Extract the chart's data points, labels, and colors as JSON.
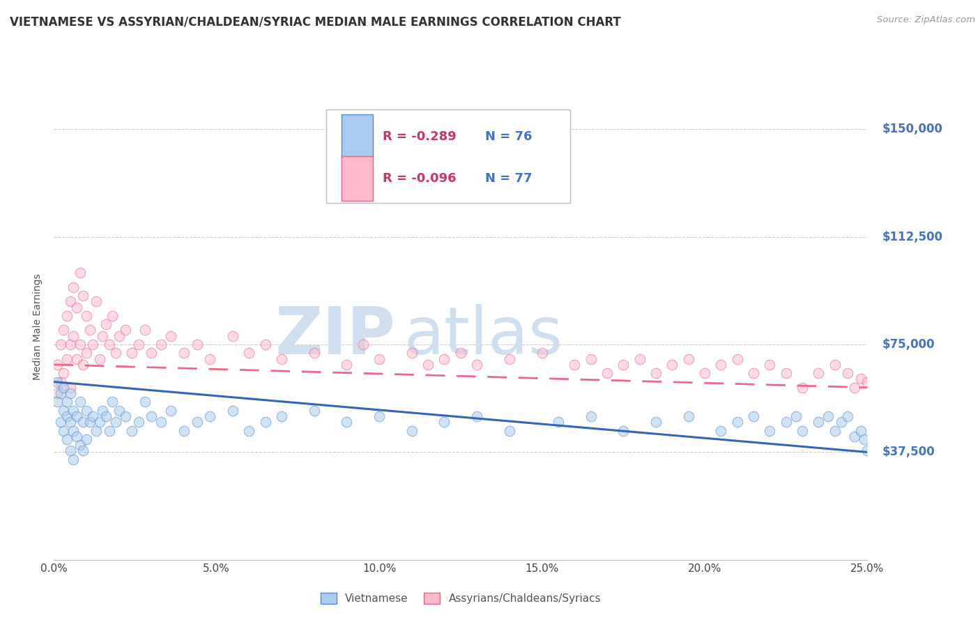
{
  "title": "VIETNAMESE VS ASSYRIAN/CHALDEAN/SYRIAC MEDIAN MALE EARNINGS CORRELATION CHART",
  "source_text": "Source: ZipAtlas.com",
  "ylabel": "Median Male Earnings",
  "xlim": [
    0.0,
    0.25
  ],
  "ylim": [
    0,
    162500
  ],
  "yticks": [
    0,
    37500,
    75000,
    112500,
    150000
  ],
  "ytick_labels": [
    "",
    "$37,500",
    "$75,000",
    "$112,500",
    "$150,000"
  ],
  "xticks": [
    0.0,
    0.05,
    0.1,
    0.15,
    0.2,
    0.25
  ],
  "xtick_labels": [
    "0.0%",
    "5.0%",
    "10.0%",
    "15.0%",
    "20.0%",
    "25.0%"
  ],
  "grid_color": "#cccccc",
  "background_color": "#ffffff",
  "title_fontsize": 12,
  "axis_label_color": "#555555",
  "ytick_color": "#4472c4",
  "xtick_color": "#444444",
  "watermark_zip": "ZIP",
  "watermark_atlas": "atlas",
  "watermark_color": "#d0dff0",
  "legend_r1": "R = -0.289",
  "legend_n1": "N = 76",
  "legend_r2": "R = -0.096",
  "legend_n2": "N = 77",
  "legend_r_color": "#cc3366",
  "legend_n_color": "#4472c4",
  "viet_color": "#aaccee",
  "viet_edge_color": "#5588cc",
  "assyr_color": "#ffbbcc",
  "assyr_edge_color": "#dd6688",
  "viet_line_color": "#3366bb",
  "assyr_line_color": "#ee6688",
  "scatter_alpha": 0.55,
  "marker_size": 110,
  "bottom_legend_items": [
    "Vietnamese",
    "Assyrians/Chaldeans/Syriacs"
  ],
  "viet_x": [
    0.001,
    0.001,
    0.002,
    0.002,
    0.003,
    0.003,
    0.003,
    0.004,
    0.004,
    0.004,
    0.005,
    0.005,
    0.005,
    0.006,
    0.006,
    0.006,
    0.007,
    0.007,
    0.008,
    0.008,
    0.009,
    0.009,
    0.01,
    0.01,
    0.011,
    0.012,
    0.013,
    0.014,
    0.015,
    0.016,
    0.017,
    0.018,
    0.019,
    0.02,
    0.022,
    0.024,
    0.026,
    0.028,
    0.03,
    0.033,
    0.036,
    0.04,
    0.044,
    0.048,
    0.055,
    0.06,
    0.065,
    0.07,
    0.08,
    0.09,
    0.1,
    0.11,
    0.12,
    0.13,
    0.14,
    0.155,
    0.165,
    0.175,
    0.185,
    0.195,
    0.205,
    0.21,
    0.215,
    0.22,
    0.225,
    0.228,
    0.23,
    0.235,
    0.238,
    0.24,
    0.242,
    0.244,
    0.246,
    0.248,
    0.249,
    0.25
  ],
  "viet_y": [
    62000,
    55000,
    58000,
    48000,
    52000,
    45000,
    60000,
    50000,
    55000,
    42000,
    58000,
    48000,
    38000,
    52000,
    45000,
    35000,
    50000,
    43000,
    55000,
    40000,
    48000,
    38000,
    52000,
    42000,
    48000,
    50000,
    45000,
    48000,
    52000,
    50000,
    45000,
    55000,
    48000,
    52000,
    50000,
    45000,
    48000,
    55000,
    50000,
    48000,
    52000,
    45000,
    48000,
    50000,
    52000,
    45000,
    48000,
    50000,
    52000,
    48000,
    50000,
    45000,
    48000,
    50000,
    45000,
    48000,
    50000,
    45000,
    48000,
    50000,
    45000,
    48000,
    50000,
    45000,
    48000,
    50000,
    45000,
    48000,
    50000,
    45000,
    48000,
    50000,
    43000,
    45000,
    42000,
    38000
  ],
  "assyr_x": [
    0.001,
    0.001,
    0.002,
    0.002,
    0.003,
    0.003,
    0.004,
    0.004,
    0.005,
    0.005,
    0.005,
    0.006,
    0.006,
    0.007,
    0.007,
    0.008,
    0.008,
    0.009,
    0.009,
    0.01,
    0.01,
    0.011,
    0.012,
    0.013,
    0.014,
    0.015,
    0.016,
    0.017,
    0.018,
    0.019,
    0.02,
    0.022,
    0.024,
    0.026,
    0.028,
    0.03,
    0.033,
    0.036,
    0.04,
    0.044,
    0.048,
    0.055,
    0.06,
    0.065,
    0.07,
    0.08,
    0.09,
    0.095,
    0.1,
    0.11,
    0.115,
    0.12,
    0.125,
    0.13,
    0.14,
    0.15,
    0.16,
    0.165,
    0.17,
    0.175,
    0.18,
    0.185,
    0.19,
    0.195,
    0.2,
    0.205,
    0.21,
    0.215,
    0.22,
    0.225,
    0.23,
    0.235,
    0.24,
    0.244,
    0.246,
    0.248,
    0.25
  ],
  "assyr_y": [
    68000,
    58000,
    75000,
    62000,
    80000,
    65000,
    85000,
    70000,
    90000,
    75000,
    60000,
    95000,
    78000,
    88000,
    70000,
    100000,
    75000,
    92000,
    68000,
    85000,
    72000,
    80000,
    75000,
    90000,
    70000,
    78000,
    82000,
    75000,
    85000,
    72000,
    78000,
    80000,
    72000,
    75000,
    80000,
    72000,
    75000,
    78000,
    72000,
    75000,
    70000,
    78000,
    72000,
    75000,
    70000,
    72000,
    68000,
    75000,
    70000,
    72000,
    68000,
    70000,
    72000,
    68000,
    70000,
    72000,
    68000,
    70000,
    65000,
    68000,
    70000,
    65000,
    68000,
    70000,
    65000,
    68000,
    70000,
    65000,
    68000,
    65000,
    60000,
    65000,
    68000,
    65000,
    60000,
    63000,
    62000
  ],
  "viet_trend_x0": 0.0,
  "viet_trend_y0": 62000,
  "viet_trend_x1": 0.25,
  "viet_trend_y1": 37500,
  "assyr_trend_x0": 0.0,
  "assyr_trend_y0": 68000,
  "assyr_trend_x1": 0.25,
  "assyr_trend_y1": 60000
}
